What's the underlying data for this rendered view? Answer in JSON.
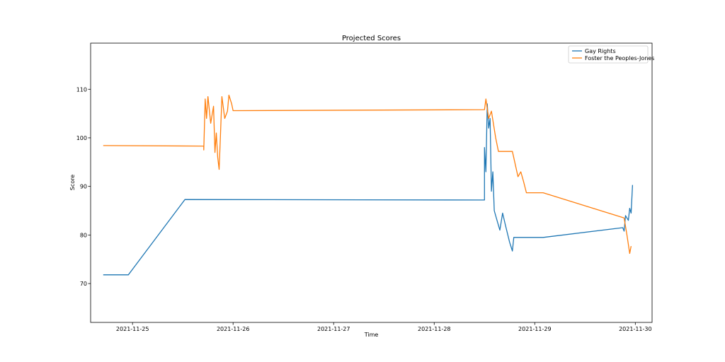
{
  "chart_data": {
    "type": "line",
    "title": "Projected Scores",
    "xlabel": "Time",
    "ylabel": "Score",
    "x_range": [
      "2021-11-24 14:00",
      "2021-11-30 04:00"
    ],
    "ylim": [
      62,
      119.5
    ],
    "x_ticks": [
      "2021-11-25",
      "2021-11-26",
      "2021-11-27",
      "2021-11-28",
      "2021-11-29",
      "2021-11-30"
    ],
    "y_ticks": [
      70,
      80,
      90,
      100,
      110
    ],
    "grid": false,
    "legend_position": "top-right",
    "series": [
      {
        "name": "Gay Rights",
        "color": "#1f77b4",
        "points": [
          [
            "2021-11-24 17:00",
            71.8
          ],
          [
            "2021-11-24 23:00",
            71.8
          ],
          [
            "2021-11-25 12:30",
            87.3
          ],
          [
            "2021-11-28 12:00",
            87.2
          ],
          [
            "2021-11-28 12:00",
            98.0
          ],
          [
            "2021-11-28 12:20",
            93.0
          ],
          [
            "2021-11-28 12:40",
            107.0
          ],
          [
            "2021-11-28 13:00",
            102.0
          ],
          [
            "2021-11-28 13:20",
            104.0
          ],
          [
            "2021-11-28 13:40",
            89.0
          ],
          [
            "2021-11-28 14:00",
            93.0
          ],
          [
            "2021-11-28 14:20",
            85.0
          ],
          [
            "2021-11-28 15:00",
            83.0
          ],
          [
            "2021-11-28 15:40",
            81.0
          ],
          [
            "2021-11-28 16:20",
            84.5
          ],
          [
            "2021-11-28 17:00",
            82.0
          ],
          [
            "2021-11-28 18:00",
            78.5
          ],
          [
            "2021-11-28 18:40",
            76.7
          ],
          [
            "2021-11-28 19:00",
            79.5
          ],
          [
            "2021-11-29 02:00",
            79.5
          ],
          [
            "2021-11-29 21:00",
            81.5
          ],
          [
            "2021-11-29 21:20",
            80.8
          ],
          [
            "2021-11-29 21:40",
            84.0
          ],
          [
            "2021-11-29 22:20",
            83.0
          ],
          [
            "2021-11-29 22:40",
            85.5
          ],
          [
            "2021-11-29 23:00",
            84.5
          ],
          [
            "2021-11-29 23:20",
            90.3
          ]
        ]
      },
      {
        "name": "Foster the Peoples-Jones",
        "color": "#ff7f0e",
        "points": [
          [
            "2021-11-24 17:00",
            98.4
          ],
          [
            "2021-11-25 17:00",
            98.3
          ],
          [
            "2021-11-25 17:00",
            97.5
          ],
          [
            "2021-11-25 17:20",
            108.0
          ],
          [
            "2021-11-25 17:40",
            104.0
          ],
          [
            "2021-11-25 18:00",
            108.5
          ],
          [
            "2021-11-25 18:40",
            103.0
          ],
          [
            "2021-11-25 19:20",
            106.5
          ],
          [
            "2021-11-25 19:40",
            97.0
          ],
          [
            "2021-11-25 20:00",
            101.0
          ],
          [
            "2021-11-25 20:20",
            96.0
          ],
          [
            "2021-11-25 20:40",
            93.5
          ],
          [
            "2021-11-25 21:00",
            101.0
          ],
          [
            "2021-11-25 21:20",
            108.5
          ],
          [
            "2021-11-25 22:00",
            104.0
          ],
          [
            "2021-11-25 22:40",
            105.5
          ],
          [
            "2021-11-25 23:00",
            108.8
          ],
          [
            "2021-11-25 23:40",
            107.0
          ],
          [
            "2021-11-26 00:00",
            105.6
          ],
          [
            "2021-11-28 12:00",
            105.8
          ],
          [
            "2021-11-28 12:20",
            108.0
          ],
          [
            "2021-11-28 13:00",
            104.0
          ],
          [
            "2021-11-28 13:40",
            105.5
          ],
          [
            "2021-11-28 14:40",
            100.0
          ],
          [
            "2021-11-28 15:20",
            97.2
          ],
          [
            "2021-11-28 18:40",
            97.2
          ],
          [
            "2021-11-28 20:00",
            92.0
          ],
          [
            "2021-11-28 20:40",
            93.0
          ],
          [
            "2021-11-28 21:20",
            91.0
          ],
          [
            "2021-11-28 22:00",
            88.7
          ],
          [
            "2021-11-29 02:00",
            88.7
          ],
          [
            "2021-11-29 21:20",
            83.5
          ],
          [
            "2021-11-29 22:00",
            80.0
          ],
          [
            "2021-11-29 22:40",
            76.2
          ],
          [
            "2021-11-29 23:00",
            77.7
          ]
        ]
      }
    ]
  }
}
